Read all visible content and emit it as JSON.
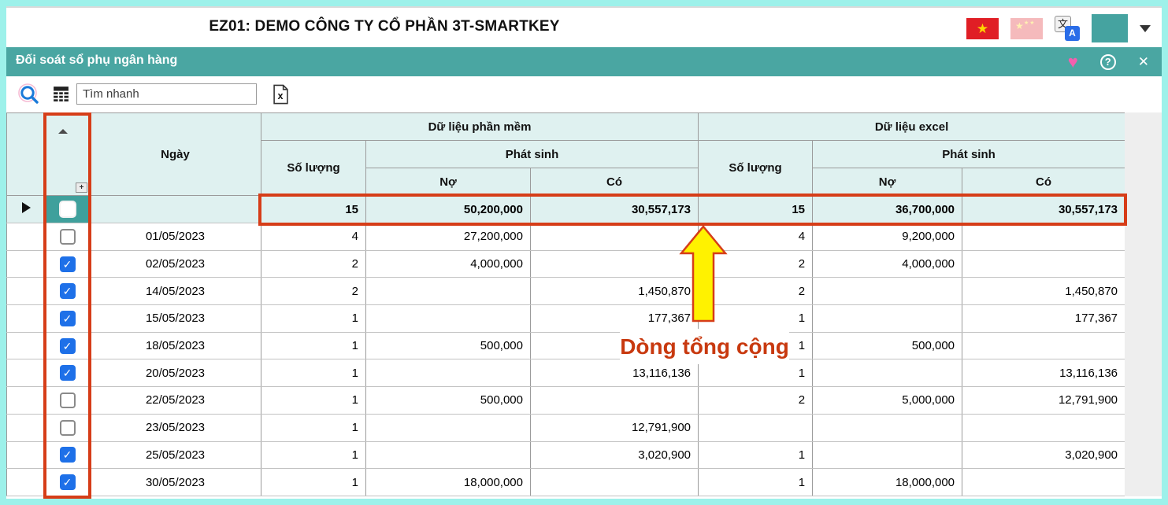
{
  "titlebar": {
    "title": "EZ01: DEMO CÔNG TY CỔ PHẦN 3T-SMARTKEY",
    "icons": [
      "vietnam-flag",
      "china-flag-faded",
      "translate-icon",
      "theme-color-swatch",
      "dropdown-caret"
    ]
  },
  "window_bar": {
    "title": "Đối soát sổ phụ ngân hàng",
    "icons": [
      "heart-icon",
      "help-icon",
      "close-icon"
    ]
  },
  "toolbar": {
    "search_placeholder": "Tìm nhanh",
    "icons": [
      "search-icon",
      "calculator-icon",
      "excel-export-icon"
    ]
  },
  "table": {
    "headers": {
      "date": "Ngày",
      "software_group": "Dữ liệu phần mềm",
      "excel_group": "Dữ liệu excel",
      "quantity": "Số lượng",
      "phat_sinh": "Phát sinh",
      "debit": "Nợ",
      "credit": "Có"
    },
    "total_row": {
      "sw_qty": "15",
      "sw_debit": "50,200,000",
      "sw_credit": "30,557,173",
      "ex_qty": "15",
      "ex_debit": "36,700,000",
      "ex_credit": "30,557,173"
    },
    "rows": [
      {
        "date": "01/05/2023",
        "checked": false,
        "sw_qty": "4",
        "sw_debit": "27,200,000",
        "sw_credit": "",
        "ex_qty": "4",
        "ex_debit": "9,200,000",
        "ex_credit": ""
      },
      {
        "date": "02/05/2023",
        "checked": true,
        "sw_qty": "2",
        "sw_debit": "4,000,000",
        "sw_credit": "",
        "ex_qty": "2",
        "ex_debit": "4,000,000",
        "ex_credit": ""
      },
      {
        "date": "14/05/2023",
        "checked": true,
        "sw_qty": "2",
        "sw_debit": "",
        "sw_credit": "1,450,870",
        "ex_qty": "2",
        "ex_debit": "",
        "ex_credit": "1,450,870"
      },
      {
        "date": "15/05/2023",
        "checked": true,
        "sw_qty": "1",
        "sw_debit": "",
        "sw_credit": "177,367",
        "ex_qty": "1",
        "ex_debit": "",
        "ex_credit": "177,367"
      },
      {
        "date": "18/05/2023",
        "checked": true,
        "sw_qty": "1",
        "sw_debit": "500,000",
        "sw_credit": "",
        "ex_qty": "1",
        "ex_debit": "500,000",
        "ex_credit": ""
      },
      {
        "date": "20/05/2023",
        "checked": true,
        "sw_qty": "1",
        "sw_debit": "",
        "sw_credit": "13,116,136",
        "ex_qty": "1",
        "ex_debit": "",
        "ex_credit": "13,116,136"
      },
      {
        "date": "22/05/2023",
        "checked": false,
        "sw_qty": "1",
        "sw_debit": "500,000",
        "sw_credit": "",
        "ex_qty": "2",
        "ex_debit": "5,000,000",
        "ex_credit": "12,791,900"
      },
      {
        "date": "23/05/2023",
        "checked": false,
        "sw_qty": "1",
        "sw_debit": "",
        "sw_credit": "12,791,900",
        "ex_qty": "",
        "ex_debit": "",
        "ex_credit": ""
      },
      {
        "date": "25/05/2023",
        "checked": true,
        "sw_qty": "1",
        "sw_debit": "",
        "sw_credit": "3,020,900",
        "ex_qty": "1",
        "ex_debit": "",
        "ex_credit": "3,020,900"
      },
      {
        "date": "30/05/2023",
        "checked": true,
        "sw_qty": "1",
        "sw_debit": "18,000,000",
        "sw_credit": "",
        "ex_qty": "1",
        "ex_debit": "18,000,000",
        "ex_credit": ""
      }
    ]
  },
  "annotation": {
    "label": "Dòng tổng cộng",
    "arrow": "up-arrow"
  },
  "colors": {
    "frame_border": "#9df1ea",
    "accent_teal": "#4aa6a2",
    "header_bg": "#dff1f0",
    "checkbox_header_blue": "#7cc4e9",
    "checked_blue": "#1e70e8",
    "annotation_red": "#d63d18",
    "annotation_text_red": "#c8390f",
    "arrow_yellow": "#fff200",
    "heart_pink": "#f45fae"
  }
}
